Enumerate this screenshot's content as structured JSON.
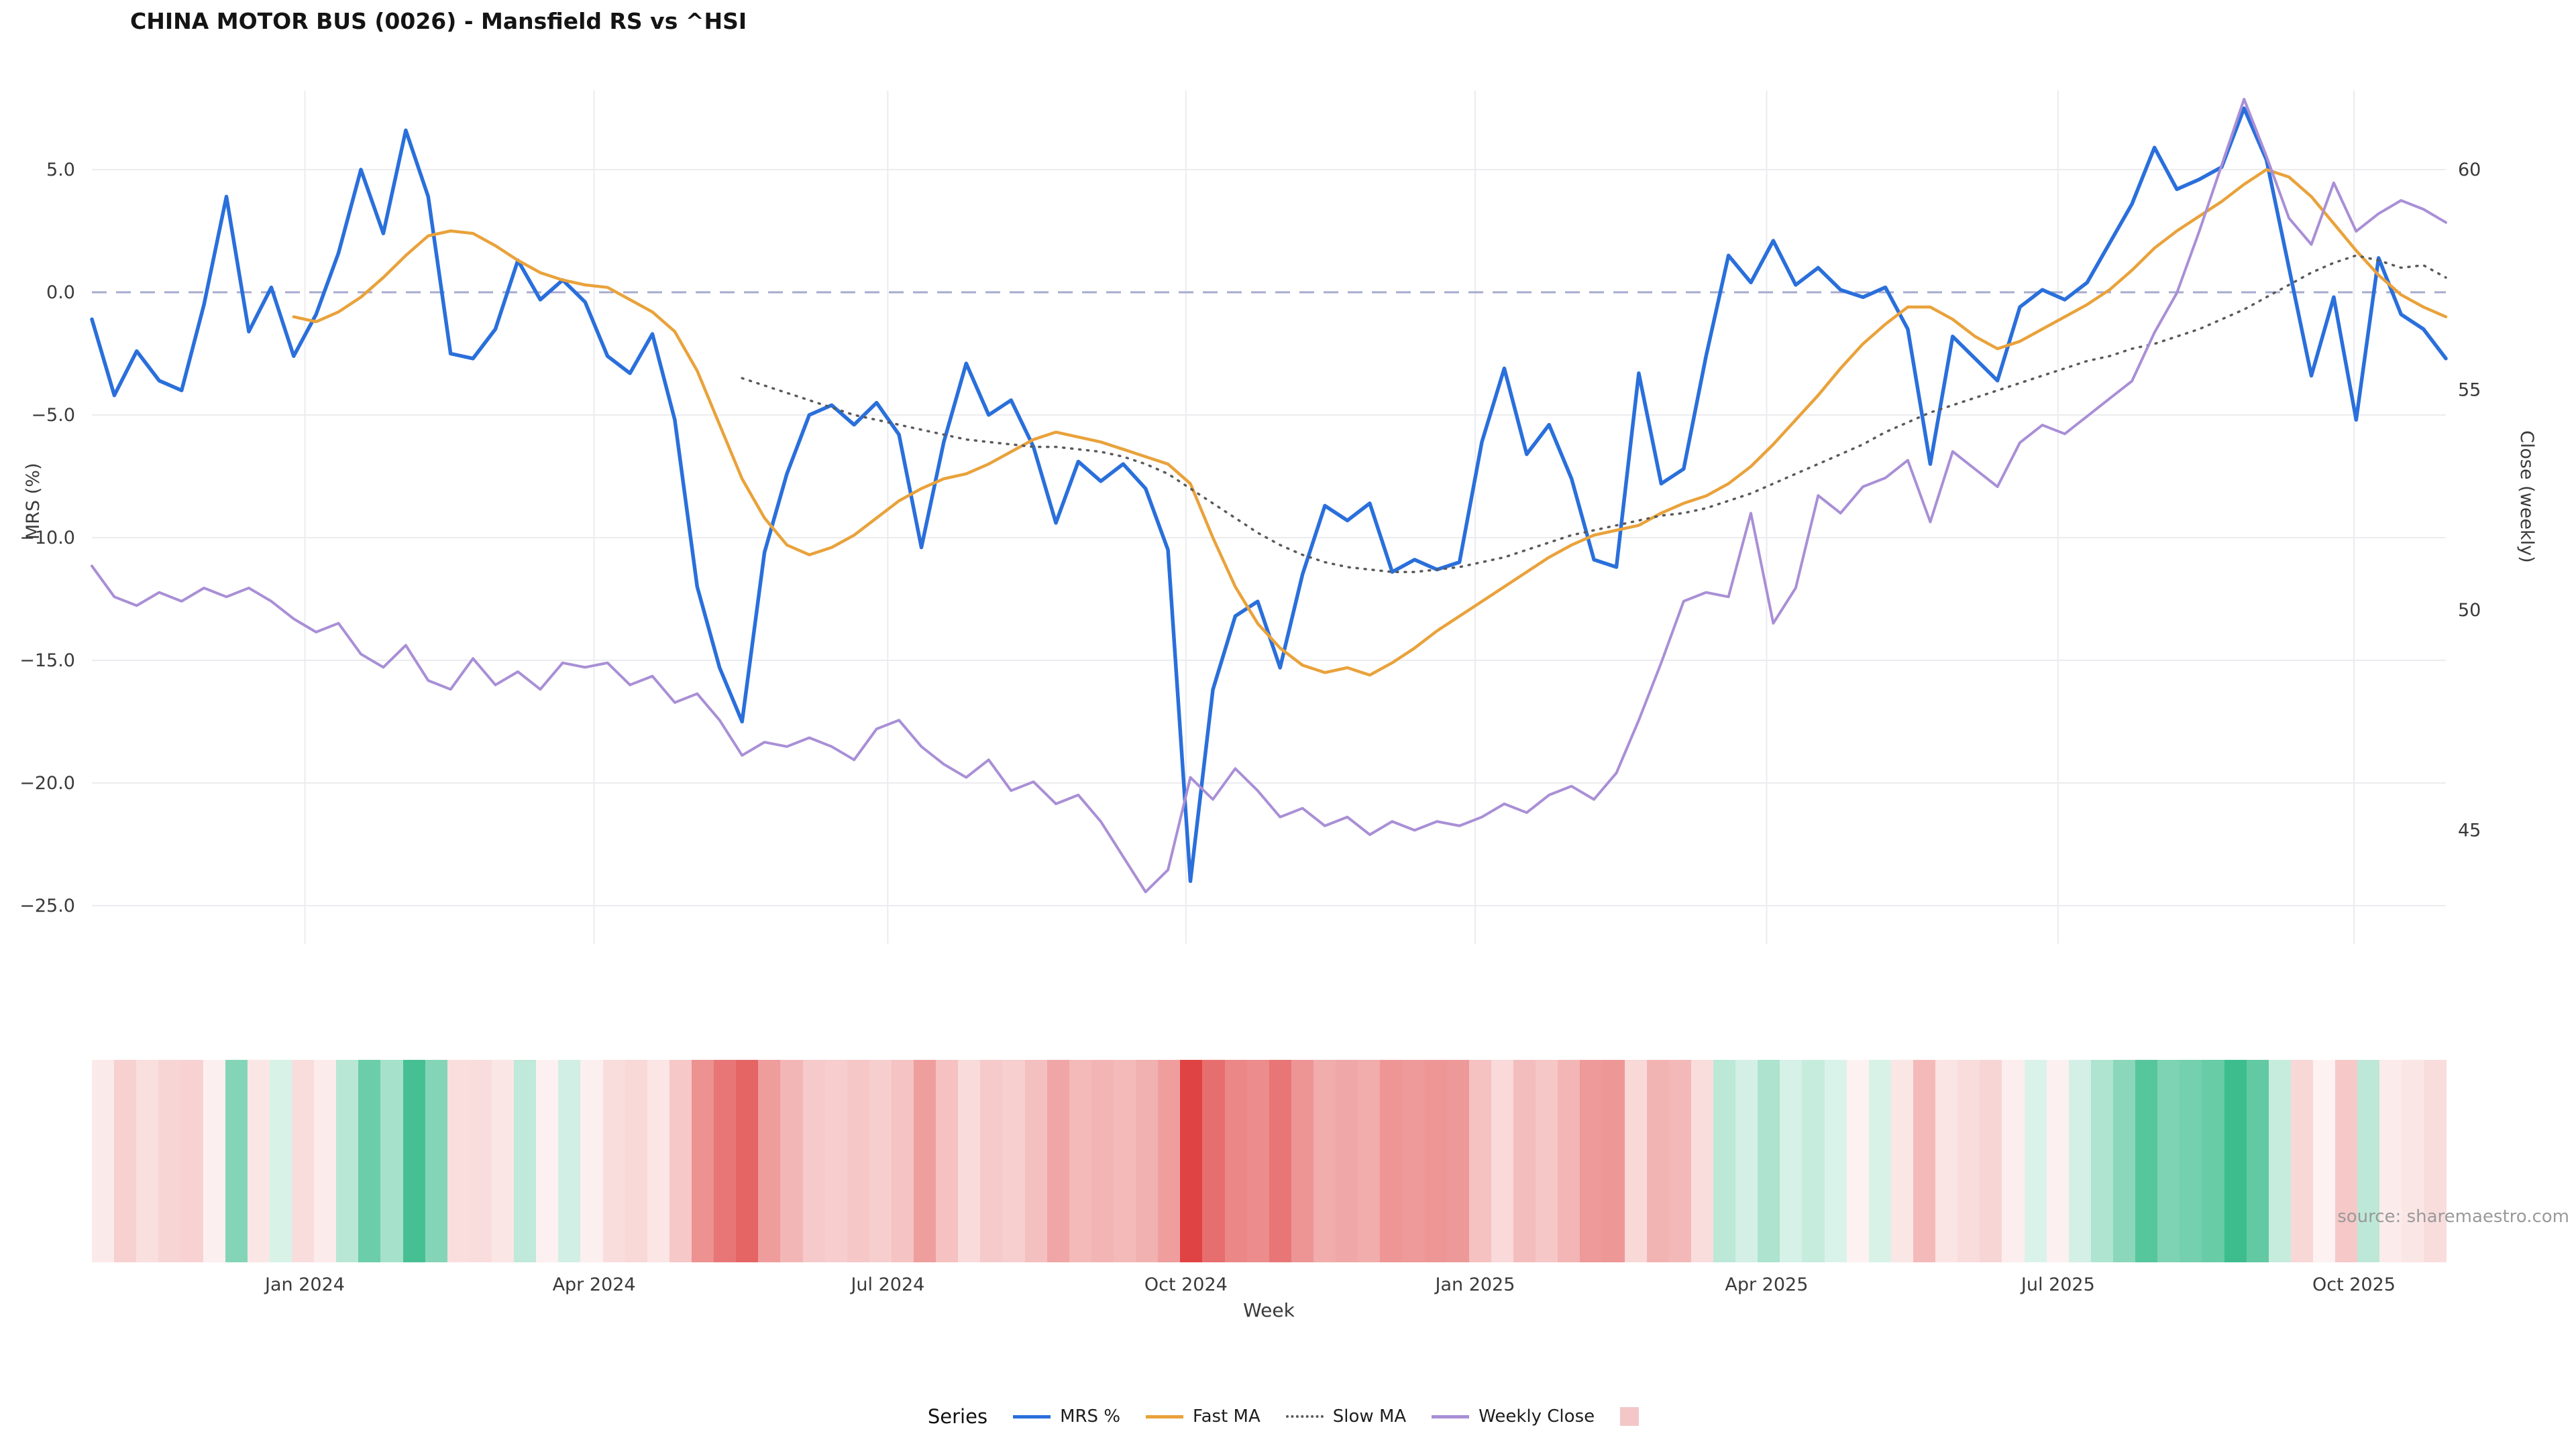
{
  "title": "CHINA MOTOR BUS (0026) - Mansfield RS vs ^HSI",
  "source": "source: sharemaestro.com",
  "legend": {
    "title": "Series",
    "items": [
      {
        "label": "MRS %",
        "swatch": "line",
        "color": "#2a6fdb"
      },
      {
        "label": "Fast MA",
        "swatch": "line",
        "color": "#e9a23b"
      },
      {
        "label": "Slow MA",
        "swatch": "dotted-line",
        "color": "#5a5a5a"
      },
      {
        "label": "Weekly Close",
        "swatch": "line",
        "color": "#a98fd6"
      },
      {
        "label": "",
        "swatch": "square",
        "color": "#f3c7c7"
      }
    ]
  },
  "chart_data": {
    "type": "line",
    "title": "CHINA MOTOR BUS (0026) - Mansfield RS vs ^HSI",
    "x_title": "Week",
    "left_axis_title": "MRS (%)",
    "right_axis_title": "Close (weekly)",
    "left_axis_range": [
      -26.5,
      8.2
    ],
    "right_axis_range": [
      42.5,
      61.8
    ],
    "zero_line_value": 0,
    "grid": true,
    "x_unit": "week-index",
    "weeks_total": 105,
    "left_ticks": [
      {
        "v": 5,
        "label": "5.0"
      },
      {
        "v": 0,
        "label": "0.0"
      },
      {
        "v": -5,
        "label": "−5.0"
      },
      {
        "v": -10,
        "label": "−10.0"
      },
      {
        "v": -15,
        "label": "−15.0"
      },
      {
        "v": -20,
        "label": "−20.0"
      },
      {
        "v": -25,
        "label": "−25.0"
      }
    ],
    "right_ticks": [
      {
        "v": 60,
        "label": "60"
      },
      {
        "v": 55,
        "label": "55"
      },
      {
        "v": 50,
        "label": "50"
      },
      {
        "v": 45,
        "label": "45"
      }
    ],
    "x_ticks": [
      {
        "week": 9.5,
        "label": "Jan 2024"
      },
      {
        "week": 22.4,
        "label": "Apr 2024"
      },
      {
        "week": 35.5,
        "label": "Jul 2024"
      },
      {
        "week": 48.8,
        "label": "Oct 2024"
      },
      {
        "week": 61.7,
        "label": "Jan 2025"
      },
      {
        "week": 74.7,
        "label": "Apr 2025"
      },
      {
        "week": 87.7,
        "label": "Jul 2025"
      },
      {
        "week": 100.9,
        "label": "Oct 2025"
      }
    ],
    "series": [
      {
        "name": "MRS %",
        "axis": "left",
        "color": "#2a6fdb",
        "style": "solid",
        "width": 5.5,
        "start_week": 0,
        "values": [
          -1.1,
          -4.2,
          -2.4,
          -3.6,
          -4.0,
          -0.5,
          3.9,
          -1.6,
          0.2,
          -2.6,
          -0.9,
          1.6,
          5.0,
          2.4,
          6.6,
          3.9,
          -2.5,
          -2.7,
          -1.5,
          1.3,
          -0.3,
          0.5,
          -0.4,
          -2.6,
          -3.3,
          -1.7,
          -5.2,
          -12.0,
          -15.3,
          -17.5,
          -10.6,
          -7.4,
          -5.0,
          -4.6,
          -5.4,
          -4.5,
          -5.8,
          -10.4,
          -6.1,
          -2.9,
          -5.0,
          -4.4,
          -6.3,
          -9.4,
          -6.9,
          -7.7,
          -7.0,
          -8.0,
          -10.5,
          -24.0,
          -16.2,
          -13.2,
          -12.6,
          -15.3,
          -11.5,
          -8.7,
          -9.3,
          -8.6,
          -11.4,
          -10.9,
          -11.3,
          -11.0,
          -6.1,
          -3.1,
          -6.6,
          -5.4,
          -7.6,
          -10.9,
          -11.2,
          -3.3,
          -7.8,
          -7.2,
          -2.6,
          1.5,
          0.4,
          2.1,
          0.3,
          1.0,
          0.1,
          -0.2,
          0.2,
          -1.5,
          -7.0,
          -1.8,
          -2.7,
          -3.6,
          -0.6,
          0.1,
          -0.3,
          0.4,
          2.0,
          3.6,
          5.9,
          4.2,
          4.6,
          5.1,
          7.5,
          5.4,
          1.0,
          -3.4,
          -0.2,
          -5.2,
          1.4,
          -0.9,
          -1.5,
          -2.7
        ]
      },
      {
        "name": "Fast MA",
        "axis": "left",
        "color": "#e9a23b",
        "style": "solid",
        "width": 4.5,
        "start_week": 9,
        "values": [
          -1.0,
          -1.2,
          -0.8,
          -0.2,
          0.6,
          1.5,
          2.3,
          2.5,
          2.4,
          1.9,
          1.3,
          0.8,
          0.5,
          0.3,
          0.2,
          -0.3,
          -0.8,
          -1.6,
          -3.2,
          -5.4,
          -7.6,
          -9.2,
          -10.3,
          -10.7,
          -10.4,
          -9.9,
          -9.2,
          -8.5,
          -8.0,
          -7.6,
          -7.4,
          -7.0,
          -6.5,
          -6.0,
          -5.7,
          -5.9,
          -6.1,
          -6.4,
          -6.7,
          -7.0,
          -7.8,
          -10.0,
          -12.0,
          -13.5,
          -14.5,
          -15.2,
          -15.5,
          -15.3,
          -15.6,
          -15.1,
          -14.5,
          -13.8,
          -13.2,
          -12.6,
          -12.0,
          -11.4,
          -10.8,
          -10.3,
          -9.9,
          -9.7,
          -9.5,
          -9.0,
          -8.6,
          -8.3,
          -7.8,
          -7.1,
          -6.2,
          -5.2,
          -4.2,
          -3.1,
          -2.1,
          -1.3,
          -0.6,
          -0.6,
          -1.1,
          -1.8,
          -2.3,
          -2.0,
          -1.5,
          -1.0,
          -0.5,
          0.1,
          0.9,
          1.8,
          2.5,
          3.1,
          3.7,
          4.4,
          5.0,
          4.7,
          3.9,
          2.8,
          1.7,
          0.7,
          -0.1,
          -0.6,
          -1.0
        ]
      },
      {
        "name": "Slow MA",
        "axis": "left",
        "color": "#5a5a5a",
        "style": "dotted",
        "width": 3.5,
        "start_week": 29,
        "values": [
          -3.5,
          -3.8,
          -4.1,
          -4.4,
          -4.7,
          -5.0,
          -5.2,
          -5.4,
          -5.6,
          -5.8,
          -6.0,
          -6.1,
          -6.2,
          -6.3,
          -6.3,
          -6.4,
          -6.5,
          -6.7,
          -7.0,
          -7.4,
          -8.0,
          -8.6,
          -9.2,
          -9.8,
          -10.3,
          -10.7,
          -11.0,
          -11.2,
          -11.3,
          -11.4,
          -11.4,
          -11.3,
          -11.2,
          -11.0,
          -10.8,
          -10.5,
          -10.2,
          -9.9,
          -9.7,
          -9.5,
          -9.3,
          -9.1,
          -9.0,
          -8.8,
          -8.5,
          -8.2,
          -7.8,
          -7.4,
          -7.0,
          -6.6,
          -6.2,
          -5.7,
          -5.3,
          -4.9,
          -4.6,
          -4.3,
          -4.0,
          -3.7,
          -3.4,
          -3.1,
          -2.8,
          -2.6,
          -2.3,
          -2.1,
          -1.8,
          -1.5,
          -1.1,
          -0.7,
          -0.2,
          0.3,
          0.8,
          1.2,
          1.5,
          1.3,
          1.0,
          1.1,
          0.6
        ]
      },
      {
        "name": "Weekly Close",
        "axis": "right",
        "color": "#a98fd6",
        "style": "solid",
        "width": 4,
        "start_week": 0,
        "values": [
          51.0,
          50.3,
          50.1,
          50.4,
          50.2,
          50.5,
          50.3,
          50.5,
          50.2,
          49.8,
          49.5,
          49.7,
          49.0,
          48.7,
          49.2,
          48.4,
          48.2,
          48.9,
          48.3,
          48.6,
          48.2,
          48.8,
          48.7,
          48.8,
          48.3,
          48.5,
          47.9,
          48.1,
          47.5,
          46.7,
          47.0,
          46.9,
          47.1,
          46.9,
          46.6,
          47.3,
          47.5,
          46.9,
          46.5,
          46.2,
          46.6,
          45.9,
          46.1,
          45.6,
          45.8,
          45.2,
          44.4,
          43.6,
          44.1,
          46.2,
          45.7,
          46.4,
          45.9,
          45.3,
          45.5,
          45.1,
          45.3,
          44.9,
          45.2,
          45.0,
          45.2,
          45.1,
          45.3,
          45.6,
          45.4,
          45.8,
          46.0,
          45.7,
          46.3,
          47.5,
          48.8,
          50.2,
          50.4,
          50.3,
          52.2,
          49.7,
          50.5,
          52.6,
          52.2,
          52.8,
          53.0,
          53.4,
          52.0,
          53.6,
          53.2,
          52.8,
          53.8,
          54.2,
          54.0,
          54.4,
          54.8,
          55.2,
          56.3,
          57.2,
          58.6,
          60.1,
          61.6,
          60.3,
          58.9,
          58.3,
          59.7,
          58.6,
          59.0,
          59.3,
          59.1,
          58.8
        ]
      }
    ],
    "heatmap": {
      "source_series": "MRS %",
      "positive_color": "#3dbd8e",
      "negative_color": "#e04343",
      "description": "weekly band colored by MRS % value (red negative, green positive)"
    }
  }
}
